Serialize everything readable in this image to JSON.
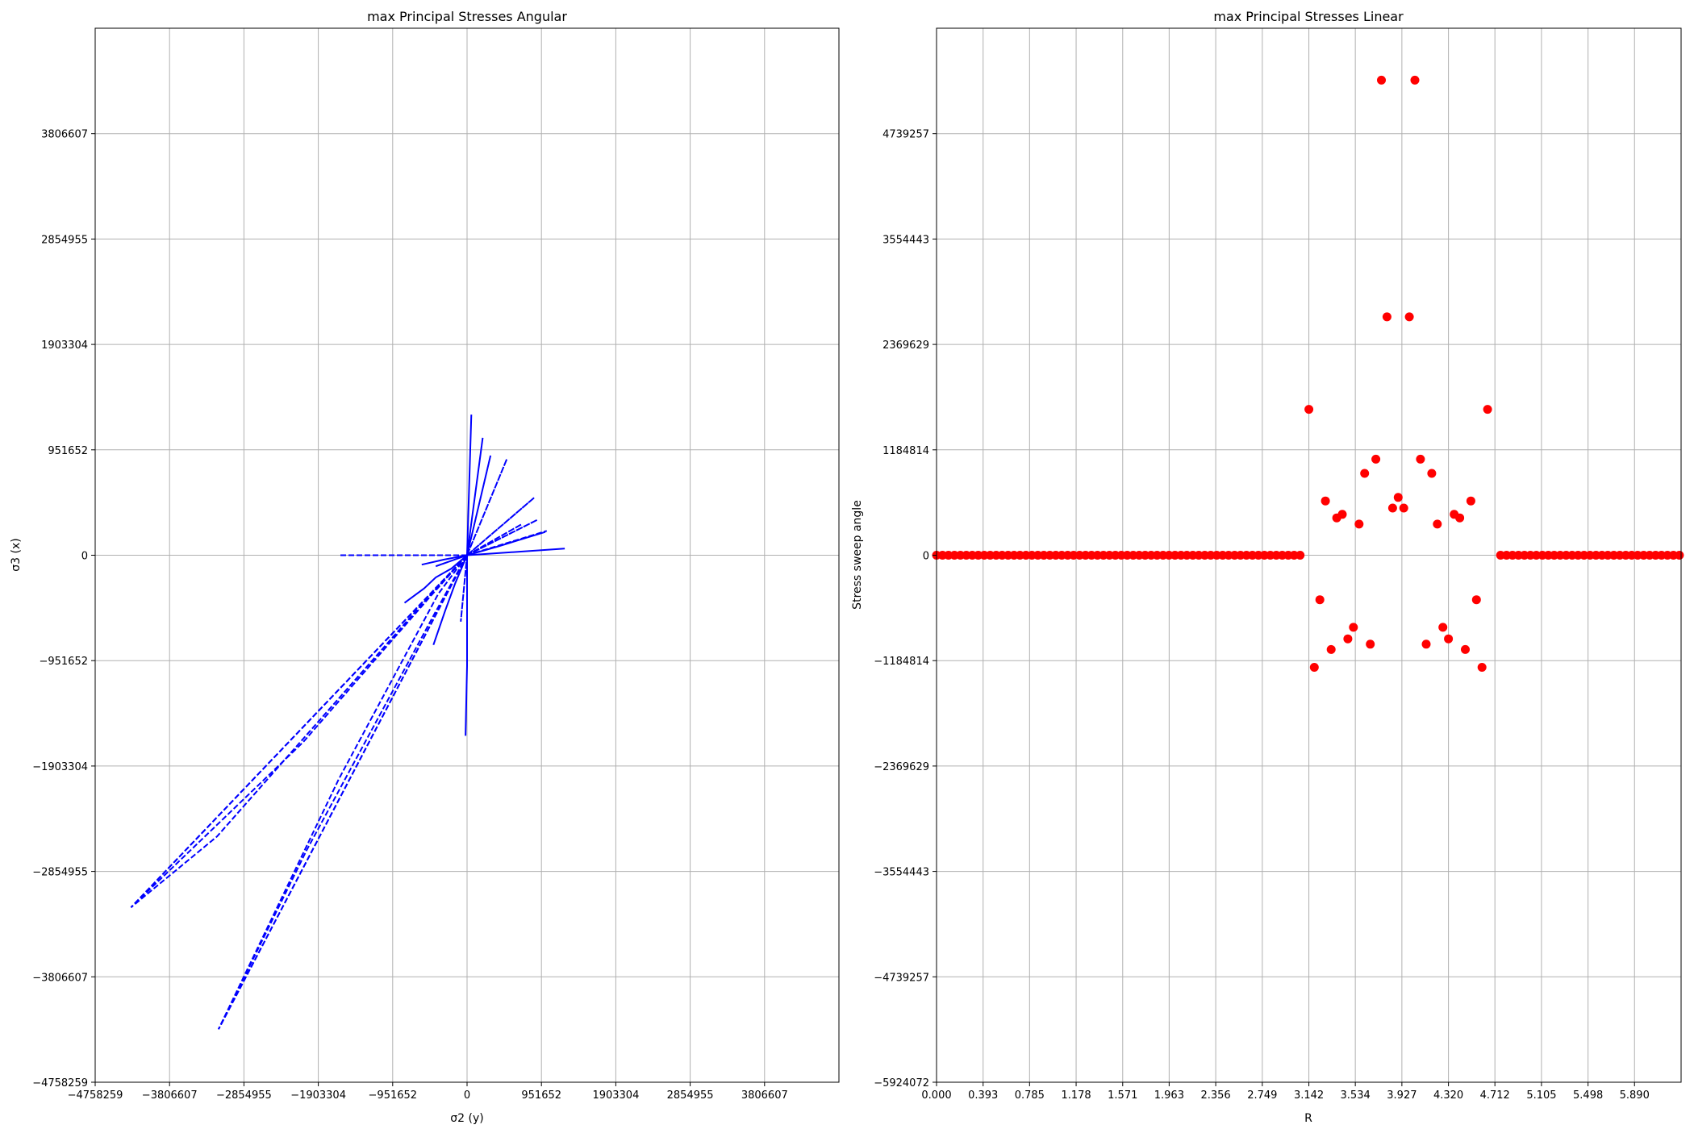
{
  "chart_data": [
    {
      "type": "line",
      "title": "max Principal Stresses Angular",
      "xlabel": "σ2 (y)",
      "ylabel": "σ3 (x)",
      "xlim": [
        -4758259,
        4758259
      ],
      "ylim": [
        -4758259,
        4758259
      ],
      "grid": true,
      "xticks": [
        "−4758259",
        "−3806607",
        "−2854955",
        "−1903304",
        "−951652",
        "0",
        "951652",
        "1903304",
        "2854955",
        "3806607"
      ],
      "yticks": [
        "−4758259",
        "−3806607",
        "−2854955",
        "−1903304",
        "−951652",
        "0",
        "951652",
        "1903304",
        "2854955",
        "3806607"
      ],
      "series_color": "#0000ff",
      "dashed_lines": [
        {
          "x": [
            0,
            -1650000
          ],
          "y": [
            0,
            0
          ]
        },
        {
          "x": [
            0,
            -4300000,
            -3200000,
            -550000,
            0
          ],
          "y": [
            0,
            -3180000,
            -2540000,
            -420000,
            0
          ]
        },
        {
          "x": [
            0,
            -4300000,
            -2100000,
            -480000,
            0
          ],
          "y": [
            0,
            -3180000,
            -1690000,
            -380000,
            0
          ]
        },
        {
          "x": [
            0,
            -3180000,
            -1640000,
            -370000,
            0
          ],
          "y": [
            0,
            -4280000,
            -2020000,
            -350000,
            0
          ]
        },
        {
          "x": [
            0,
            -3180000,
            -2050000,
            -410000,
            0
          ],
          "y": [
            0,
            -4280000,
            -2660000,
            -520000,
            0
          ]
        },
        {
          "x": [
            0,
            -80000,
            0
          ],
          "y": [
            0,
            -600000,
            0
          ]
        },
        {
          "x": [
            0,
            200000,
            0
          ],
          "y": [
            0,
            1060000,
            0
          ]
        },
        {
          "x": [
            0,
            300000,
            0
          ],
          "y": [
            0,
            900000,
            0
          ]
        },
        {
          "x": [
            0,
            510000,
            0
          ],
          "y": [
            0,
            870000,
            0
          ]
        },
        {
          "x": [
            0,
            860000,
            0
          ],
          "y": [
            0,
            520000,
            0
          ]
        },
        {
          "x": [
            0,
            900000,
            0
          ],
          "y": [
            0,
            320000,
            0
          ]
        },
        {
          "x": [
            0,
            1020000,
            0
          ],
          "y": [
            0,
            220000,
            0
          ]
        },
        {
          "x": [
            0,
            700000,
            0
          ],
          "y": [
            0,
            280000,
            0
          ]
        },
        {
          "x": [
            0,
            -400000,
            0
          ],
          "y": [
            0,
            -100000,
            0
          ]
        }
      ],
      "solid_lines": [
        {
          "x": [
            55000,
            0,
            0,
            -20000
          ],
          "y": [
            1270000,
            0,
            -1000000,
            -1630000
          ]
        },
        {
          "x": [
            -800000,
            -550000,
            -400000,
            -200000,
            0
          ],
          "y": [
            -430000,
            -300000,
            -200000,
            -120000,
            0
          ]
        },
        {
          "x": [
            -430000,
            -280000,
            -150000,
            0
          ],
          "y": [
            -810000,
            -500000,
            -250000,
            0
          ]
        },
        {
          "x": [
            0,
            1250000
          ],
          "y": [
            0,
            60000
          ]
        },
        {
          "x": [
            0,
            400000,
            1000000
          ],
          "y": [
            0,
            80000,
            210000
          ]
        },
        {
          "x": [
            -580000,
            -300000,
            0
          ],
          "y": [
            -85000,
            -40000,
            0
          ]
        }
      ]
    },
    {
      "type": "scatter",
      "title": "max Principal Stresses Linear",
      "xlabel": "R",
      "ylabel": "Stress sweep angle",
      "xlim": [
        0,
        6.2832
      ],
      "ylim": [
        -5924072,
        5924072
      ],
      "grid": true,
      "xticks": [
        "0.000",
        "0.393",
        "0.785",
        "1.178",
        "1.571",
        "1.963",
        "2.356",
        "2.749",
        "3.142",
        "3.534",
        "3.927",
        "4.320",
        "4.712",
        "5.105",
        "5.498",
        "5.890"
      ],
      "xtick_values": [
        0,
        0.393,
        0.785,
        1.178,
        1.571,
        1.963,
        2.356,
        2.749,
        3.142,
        3.534,
        3.927,
        4.32,
        4.712,
        5.105,
        5.498,
        5.89
      ],
      "yticks": [
        "−5924072",
        "−4739257",
        "−3554443",
        "−2369629",
        "−1184814",
        "0",
        "1184814",
        "2369629",
        "3554443",
        "4739257"
      ],
      "ytick_values": [
        -5924072,
        -4739257,
        -3554443,
        -2369629,
        -1184814,
        0,
        1184814,
        2369629,
        3554443,
        4739257
      ],
      "marker_color": "#ff0000",
      "zero_segments": [
        {
          "from": 0.0,
          "to": 3.09,
          "step": 0.0503
        },
        {
          "from": 4.76,
          "to": 6.283,
          "step": 0.0503
        }
      ],
      "points": [
        {
          "x": 3.142,
          "y": 1640000
        },
        {
          "x": 3.188,
          "y": -1260000
        },
        {
          "x": 3.235,
          "y": -500000
        },
        {
          "x": 3.282,
          "y": 610000
        },
        {
          "x": 3.33,
          "y": -1060000
        },
        {
          "x": 3.377,
          "y": 420000
        },
        {
          "x": 3.424,
          "y": 460000
        },
        {
          "x": 3.471,
          "y": -940000
        },
        {
          "x": 3.518,
          "y": -810000
        },
        {
          "x": 3.566,
          "y": 350000
        },
        {
          "x": 3.613,
          "y": 920000
        },
        {
          "x": 3.66,
          "y": -1000000
        },
        {
          "x": 3.707,
          "y": 1080000
        },
        {
          "x": 3.754,
          "y": 5340000
        },
        {
          "x": 3.801,
          "y": 2680000
        },
        {
          "x": 3.849,
          "y": 530000
        },
        {
          "x": 3.896,
          "y": 650000
        },
        {
          "x": 3.943,
          "y": 530000
        },
        {
          "x": 3.99,
          "y": 2680000
        },
        {
          "x": 4.037,
          "y": 5340000
        },
        {
          "x": 4.084,
          "y": 1080000
        },
        {
          "x": 4.132,
          "y": -1000000
        },
        {
          "x": 4.179,
          "y": 920000
        },
        {
          "x": 4.226,
          "y": 350000
        },
        {
          "x": 4.273,
          "y": -810000
        },
        {
          "x": 4.32,
          "y": -940000
        },
        {
          "x": 4.368,
          "y": 460000
        },
        {
          "x": 4.415,
          "y": 420000
        },
        {
          "x": 4.462,
          "y": -1060000
        },
        {
          "x": 4.509,
          "y": 610000
        },
        {
          "x": 4.556,
          "y": -500000
        },
        {
          "x": 4.603,
          "y": -1260000
        },
        {
          "x": 4.65,
          "y": 1640000
        }
      ]
    }
  ]
}
